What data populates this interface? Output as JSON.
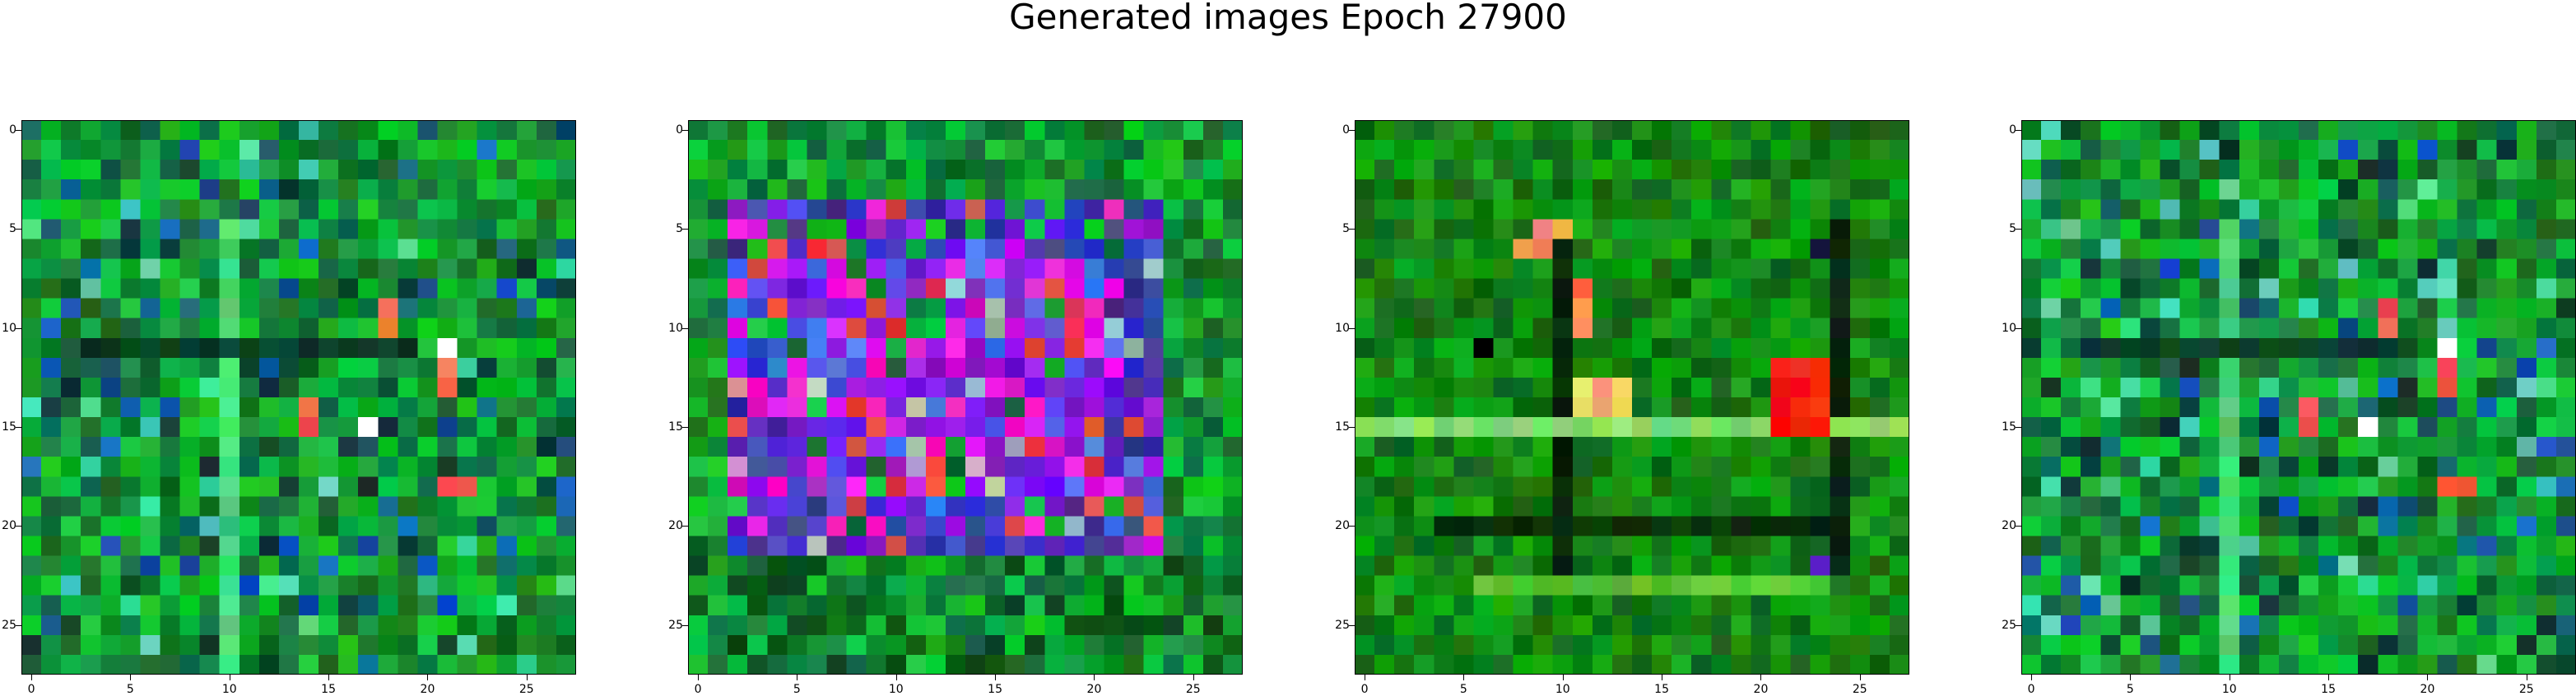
{
  "figure": {
    "title": "Generated images Epoch 27900"
  },
  "panels": [
    {
      "id": "panel-1",
      "palette": "green-noise",
      "seed": 11
    },
    {
      "id": "panel-2",
      "palette": "green-purple-square",
      "seed": 23
    },
    {
      "id": "panel-3",
      "palette": "green-dark-sparse",
      "seed": 37
    },
    {
      "id": "panel-4",
      "palette": "green-noise-2",
      "seed": 53
    }
  ],
  "axes": {
    "x_ticks": [
      "0",
      "5",
      "10",
      "15",
      "20",
      "25"
    ],
    "y_ticks": [
      "0",
      "5",
      "10",
      "15",
      "20",
      "25"
    ],
    "tick_values": [
      0,
      5,
      10,
      15,
      20,
      25
    ],
    "grid_size": 28
  }
}
